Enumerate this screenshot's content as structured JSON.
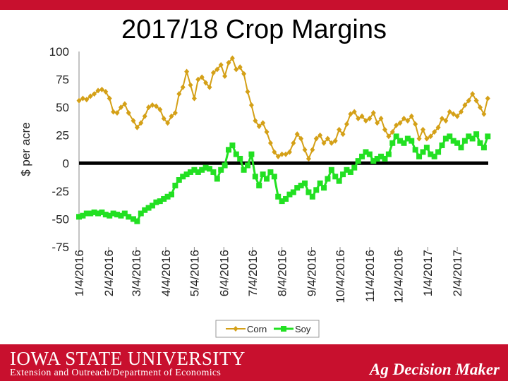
{
  "colors": {
    "brand": "#c8102e",
    "corn": "#d4a017",
    "soy": "#22e022",
    "zero_line": "#000000"
  },
  "footer": {
    "university": "IOWA STATE UNIVERSITY",
    "subtitle": "Extension and Outreach/Department of Economics",
    "brand": "Ag Decision Maker"
  },
  "chart_data": {
    "type": "line",
    "title": "2017/18 Crop Margins",
    "ylabel": "$ per acre",
    "xlabel": "",
    "ylim": [
      -75,
      100
    ],
    "y_ticks": [
      100,
      75,
      50,
      25,
      0,
      -25,
      -50,
      -75
    ],
    "x_tick_labels": [
      "1/4/2016",
      "2/4/2016",
      "3/4/2016",
      "4/4/2016",
      "5/4/2016",
      "6/4/2016",
      "7/4/2016",
      "8/4/2016",
      "9/4/2016",
      "10/4/2016",
      "11/4/2016",
      "12/4/2016",
      "1/4/2017",
      "2/4/2017"
    ],
    "x_range": [
      "2016-01-04",
      "2017-03-10"
    ],
    "grid": false,
    "legend": "bottom-right",
    "reference_line": 0,
    "series": [
      {
        "name": "Corn",
        "marker": "diamond",
        "x": [
          "2016-01-04",
          "2016-01-08",
          "2016-01-12",
          "2016-01-16",
          "2016-01-20",
          "2016-01-24",
          "2016-01-28",
          "2016-02-01",
          "2016-02-05",
          "2016-02-09",
          "2016-02-13",
          "2016-02-17",
          "2016-02-21",
          "2016-02-25",
          "2016-03-01",
          "2016-03-05",
          "2016-03-09",
          "2016-03-13",
          "2016-03-17",
          "2016-03-21",
          "2016-03-25",
          "2016-03-29",
          "2016-04-02",
          "2016-04-06",
          "2016-04-10",
          "2016-04-14",
          "2016-04-18",
          "2016-04-22",
          "2016-04-26",
          "2016-04-30",
          "2016-05-04",
          "2016-05-08",
          "2016-05-12",
          "2016-05-16",
          "2016-05-20",
          "2016-05-24",
          "2016-05-28",
          "2016-06-01",
          "2016-06-05",
          "2016-06-09",
          "2016-06-13",
          "2016-06-17",
          "2016-06-21",
          "2016-06-25",
          "2016-06-29",
          "2016-07-03",
          "2016-07-07",
          "2016-07-11",
          "2016-07-15",
          "2016-07-19",
          "2016-07-23",
          "2016-07-27",
          "2016-07-31",
          "2016-08-04",
          "2016-08-08",
          "2016-08-12",
          "2016-08-16",
          "2016-08-20",
          "2016-08-24",
          "2016-08-28",
          "2016-09-01",
          "2016-09-05",
          "2016-09-09",
          "2016-09-13",
          "2016-09-17",
          "2016-09-21",
          "2016-09-25",
          "2016-09-29",
          "2016-10-03",
          "2016-10-07",
          "2016-10-11",
          "2016-10-15",
          "2016-10-19",
          "2016-10-23",
          "2016-10-27",
          "2016-10-31",
          "2016-11-04",
          "2016-11-08",
          "2016-11-12",
          "2016-11-16",
          "2016-11-20",
          "2016-11-24",
          "2016-11-28",
          "2016-12-02",
          "2016-12-06",
          "2016-12-10",
          "2016-12-14",
          "2016-12-18",
          "2016-12-22",
          "2016-12-26",
          "2016-12-30",
          "2017-01-03",
          "2017-01-07",
          "2017-01-11",
          "2017-01-15",
          "2017-01-19",
          "2017-01-23",
          "2017-01-27",
          "2017-01-31",
          "2017-02-04",
          "2017-02-08",
          "2017-02-12",
          "2017-02-16",
          "2017-02-20",
          "2017-02-24",
          "2017-02-28",
          "2017-03-04",
          "2017-03-08"
        ],
        "values": [
          56,
          58,
          57,
          60,
          62,
          65,
          66,
          64,
          58,
          46,
          45,
          50,
          53,
          45,
          38,
          32,
          36,
          42,
          50,
          52,
          51,
          48,
          40,
          36,
          42,
          45,
          62,
          68,
          82,
          70,
          58,
          75,
          77,
          72,
          68,
          81,
          84,
          88,
          78,
          90,
          94,
          84,
          86,
          80,
          64,
          52,
          38,
          33,
          36,
          28,
          18,
          10,
          6,
          8,
          8,
          10,
          18,
          26,
          22,
          12,
          4,
          12,
          22,
          25,
          18,
          22,
          18,
          20,
          30,
          26,
          35,
          44,
          46,
          40,
          42,
          38,
          40,
          45,
          36,
          40,
          30,
          24,
          28,
          34,
          36,
          40,
          38,
          42,
          35,
          22,
          30,
          22,
          24,
          28,
          32,
          40,
          38,
          46,
          44,
          42,
          46,
          52,
          56,
          62,
          56,
          50,
          44,
          58
        ]
      },
      {
        "name": "Soy",
        "marker": "square",
        "x": [
          "2016-01-04",
          "2016-01-08",
          "2016-01-12",
          "2016-01-16",
          "2016-01-20",
          "2016-01-24",
          "2016-01-28",
          "2016-02-01",
          "2016-02-05",
          "2016-02-09",
          "2016-02-13",
          "2016-02-17",
          "2016-02-21",
          "2016-02-25",
          "2016-03-01",
          "2016-03-05",
          "2016-03-09",
          "2016-03-13",
          "2016-03-17",
          "2016-03-21",
          "2016-03-25",
          "2016-03-29",
          "2016-04-02",
          "2016-04-06",
          "2016-04-10",
          "2016-04-14",
          "2016-04-18",
          "2016-04-22",
          "2016-04-26",
          "2016-04-30",
          "2016-05-04",
          "2016-05-08",
          "2016-05-12",
          "2016-05-16",
          "2016-05-20",
          "2016-05-24",
          "2016-05-28",
          "2016-06-01",
          "2016-06-05",
          "2016-06-09",
          "2016-06-13",
          "2016-06-17",
          "2016-06-21",
          "2016-06-25",
          "2016-06-29",
          "2016-07-03",
          "2016-07-07",
          "2016-07-11",
          "2016-07-15",
          "2016-07-19",
          "2016-07-23",
          "2016-07-27",
          "2016-07-31",
          "2016-08-04",
          "2016-08-08",
          "2016-08-12",
          "2016-08-16",
          "2016-08-20",
          "2016-08-24",
          "2016-08-28",
          "2016-09-01",
          "2016-09-05",
          "2016-09-09",
          "2016-09-13",
          "2016-09-17",
          "2016-09-21",
          "2016-09-25",
          "2016-09-29",
          "2016-10-03",
          "2016-10-07",
          "2016-10-11",
          "2016-10-15",
          "2016-10-19",
          "2016-10-23",
          "2016-10-27",
          "2016-10-31",
          "2016-11-04",
          "2016-11-08",
          "2016-11-12",
          "2016-11-16",
          "2016-11-20",
          "2016-11-24",
          "2016-11-28",
          "2016-12-02",
          "2016-12-06",
          "2016-12-10",
          "2016-12-14",
          "2016-12-18",
          "2016-12-22",
          "2016-12-26",
          "2016-12-30",
          "2017-01-03",
          "2017-01-07",
          "2017-01-11",
          "2017-01-15",
          "2017-01-19",
          "2017-01-23",
          "2017-01-27",
          "2017-01-31",
          "2017-02-04",
          "2017-02-08",
          "2017-02-12",
          "2017-02-16",
          "2017-02-20",
          "2017-02-24",
          "2017-02-28",
          "2017-03-04",
          "2017-03-08"
        ],
        "values": [
          -48,
          -47,
          -45,
          -45,
          -44,
          -45,
          -44,
          -46,
          -47,
          -45,
          -46,
          -47,
          -45,
          -48,
          -50,
          -52,
          -45,
          -42,
          -40,
          -38,
          -35,
          -34,
          -32,
          -30,
          -28,
          -20,
          -15,
          -12,
          -10,
          -8,
          -6,
          -8,
          -6,
          -4,
          -5,
          -8,
          -14,
          -6,
          -2,
          12,
          16,
          8,
          4,
          -6,
          -2,
          8,
          -12,
          -20,
          -10,
          -14,
          -8,
          -12,
          -30,
          -34,
          -32,
          -28,
          -26,
          -22,
          -20,
          -18,
          -26,
          -30,
          -24,
          -18,
          -22,
          -14,
          -6,
          -12,
          -16,
          -10,
          -6,
          -8,
          -4,
          2,
          6,
          10,
          8,
          2,
          4,
          6,
          4,
          8,
          18,
          24,
          20,
          18,
          22,
          20,
          12,
          6,
          10,
          14,
          8,
          6,
          10,
          16,
          22,
          24,
          20,
          18,
          14,
          20,
          24,
          22,
          26,
          18,
          14,
          24
        ]
      }
    ]
  }
}
